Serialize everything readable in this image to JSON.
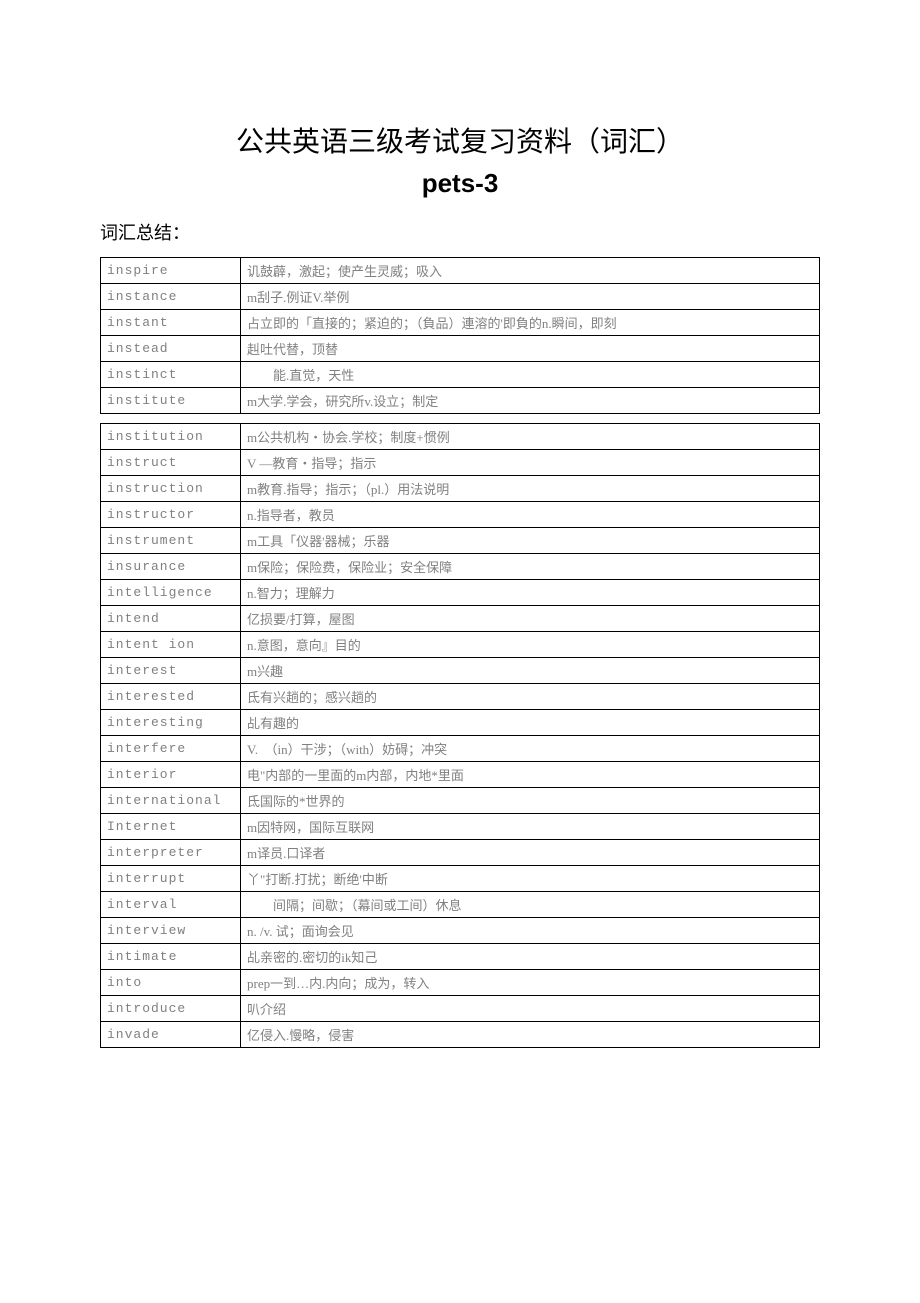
{
  "title": "公共英语三级考试复习资料（词汇）",
  "subtitle": "pets-3",
  "section_label": "词汇总结：",
  "colors": {
    "text_gray": "#808080",
    "border": "#000000",
    "background": "#ffffff"
  },
  "entries_part1": [
    {
      "word": "inspire",
      "def": "讥鼓薜，激起；使产生灵威；吸入"
    },
    {
      "word": "instance",
      "def": "m刮子.例证V.举例"
    },
    {
      "word": "instant",
      "def": "占立即的「直接的；紧迫的；（負品）連溶的'即負的n.瞬间，即刻"
    },
    {
      "word": "instead",
      "def": "赳吐代替，顶替"
    },
    {
      "word": "instinct",
      "def": "　　能.直觉，天性"
    },
    {
      "word": "institute",
      "def": "m大学.学会，研究所v.设立；制定"
    }
  ],
  "entries_part2": [
    {
      "word": "institution",
      "def": "m公共机构・协会.学校；制度+惯例"
    },
    {
      "word": "instruct",
      "def": "V ―教育・指导；指示"
    },
    {
      "word": "instruction",
      "def": "m教育.指导；指示；（pl.）用法说明"
    },
    {
      "word": "instructor",
      "def": "n.指导者，教员"
    },
    {
      "word": "instrument",
      "def": "m工具「仪器'器械；乐器"
    },
    {
      "word": "insurance",
      "def": "m保险；保险费，保险业；安全保障"
    },
    {
      "word": "intelligence",
      "def": "n.智力；理解力"
    },
    {
      "word": "intend",
      "def": "亿损要/打算，屋图"
    },
    {
      "word": "intent ion",
      "def": "n.意图，意向』目的"
    },
    {
      "word": "interest",
      "def": "m兴趣"
    },
    {
      "word": "interested",
      "def": "氐有兴趟的；感兴趟的"
    },
    {
      "word": "interesting",
      "def": "乩有趣的"
    },
    {
      "word": "interfere",
      "def": "V.　（in）干涉；（with）妨碍；冲突"
    },
    {
      "word": "interior",
      "def": "电\"内部的一里面的m内部，内地*里面"
    },
    {
      "word": "international",
      "def": "氐国际的*世界的"
    },
    {
      "word": "Internet",
      "def": "m因特网，国际互联网"
    },
    {
      "word": "interpreter",
      "def": "m译员.口译者"
    },
    {
      "word": "interrupt",
      "def": "丫\"打断.打扰；断绝'中断"
    },
    {
      "word": "interval",
      "def": "　　间隔；间歇；（幕间或工间）休息"
    },
    {
      "word": "interview",
      "def": "n. /v. 试；面询会见"
    },
    {
      "word": "intimate",
      "def": "乩亲密的.密切的ik知己"
    },
    {
      "word": "into",
      "def": "prep一到…内.内向；成为，转入"
    },
    {
      "word": "introduce",
      "def": "叭介绍"
    },
    {
      "word": "invade",
      "def": "亿侵入.慢略，侵害"
    }
  ]
}
